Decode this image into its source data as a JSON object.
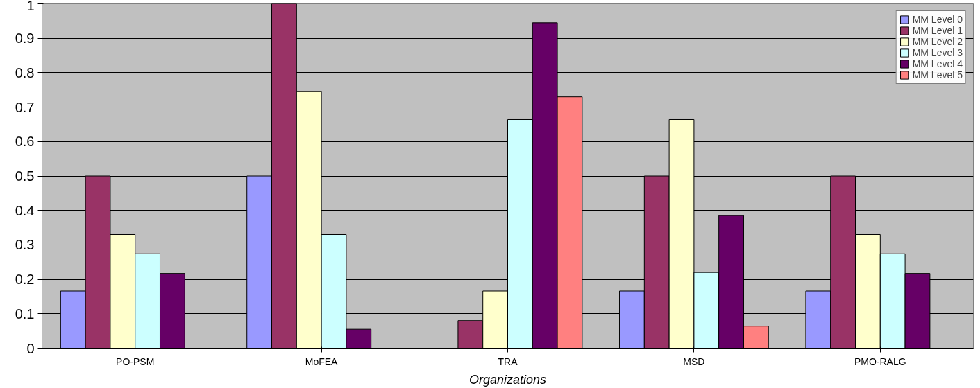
{
  "chart_data": {
    "type": "bar",
    "xlabel": "Organizations",
    "categories": [
      "PO-PSM",
      "MoFEA",
      "TRA",
      "MSD",
      "PMO-RALG"
    ],
    "series": [
      {
        "name": "MM Level 0",
        "color": "#9999ff",
        "values": [
          0.166,
          0.5,
          null,
          0.166,
          0.166
        ]
      },
      {
        "name": "MM Level 1",
        "color": "#993366",
        "values": [
          0.5,
          1.0,
          0.08,
          0.5,
          0.5
        ]
      },
      {
        "name": "MM Level 2",
        "color": "#ffffcc",
        "values": [
          0.33,
          0.745,
          0.166,
          0.664,
          0.33
        ]
      },
      {
        "name": "MM Level 3",
        "color": "#ccffff",
        "values": [
          0.274,
          0.33,
          0.664,
          0.22,
          0.274
        ]
      },
      {
        "name": "MM Level 4",
        "color": "#660066",
        "values": [
          0.217,
          0.055,
          0.945,
          0.385,
          0.217
        ]
      },
      {
        "name": "MM Level 5",
        "color": "#ff8080",
        "values": [
          null,
          null,
          0.73,
          0.064,
          null
        ]
      }
    ],
    "ylim": [
      0,
      1
    ],
    "yticks": [
      0,
      0.1,
      0.2,
      0.3,
      0.4,
      0.5,
      0.6,
      0.7,
      0.8,
      0.9,
      1
    ],
    "grid": "y",
    "legend": "top right"
  }
}
